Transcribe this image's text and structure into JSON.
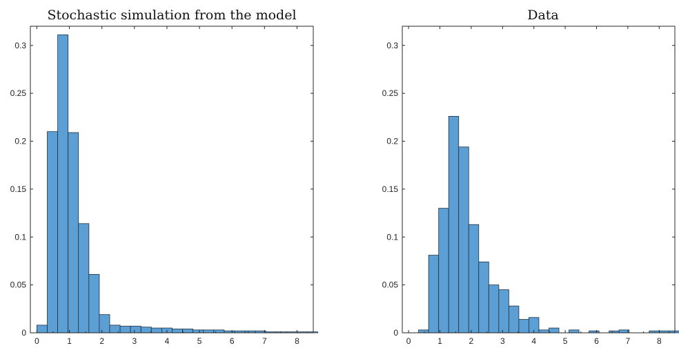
{
  "chart_data": [
    {
      "type": "bar",
      "title": "Stochastic simulation from the model",
      "xlim": [
        -0.2,
        8.5
      ],
      "ylim": [
        0,
        0.32
      ],
      "xticks": [
        "0",
        "1",
        "2",
        "3",
        "4",
        "5",
        "6",
        "7",
        "8"
      ],
      "yticks": [
        "0.05",
        "0.1",
        "0.15",
        "0.2",
        "0.25",
        "0.3"
      ],
      "bin_width": 0.32,
      "bin_start": 0.0,
      "values": [
        0.008,
        0.21,
        0.311,
        0.209,
        0.114,
        0.061,
        0.019,
        0.008,
        0.007,
        0.007,
        0.006,
        0.005,
        0.005,
        0.004,
        0.004,
        0.003,
        0.003,
        0.003,
        0.002,
        0.002,
        0.002,
        0.002,
        0.001,
        0.001,
        0.001,
        0.001,
        0.001
      ]
    },
    {
      "type": "bar",
      "title": "Data",
      "xlim": [
        -0.2,
        8.5
      ],
      "ylim": [
        0,
        0.32
      ],
      "xticks": [
        "0",
        "1",
        "2",
        "3",
        "4",
        "5",
        "6",
        "7",
        "8"
      ],
      "yticks": [
        "0.05",
        "0.1",
        "0.15",
        "0.2",
        "0.25",
        "0.3"
      ],
      "bin_width": 0.32,
      "bin_start": 0.32,
      "values": [
        0.003,
        0.081,
        0.13,
        0.226,
        0.194,
        0.113,
        0.074,
        0.05,
        0.045,
        0.028,
        0.014,
        0.016,
        0.003,
        0.005,
        0,
        0.003,
        0,
        0.002,
        0,
        0.002,
        0.003,
        0,
        0,
        0.002,
        0.002,
        0.002
      ]
    }
  ]
}
